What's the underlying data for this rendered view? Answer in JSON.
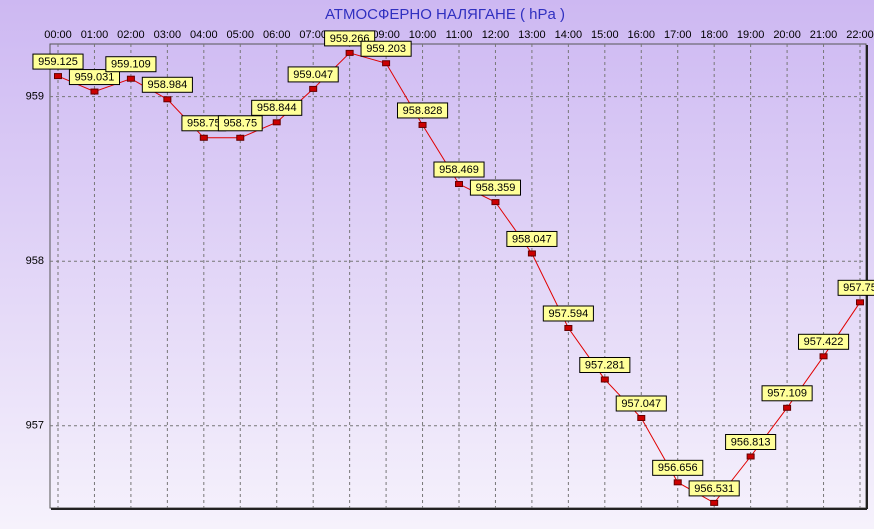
{
  "chart_data": {
    "type": "line",
    "title": "АТМОСФЕРНО НАЛЯГАНЕ  ( hPa )",
    "categories": [
      "00:00",
      "01:00",
      "02:00",
      "03:00",
      "04:00",
      "05:00",
      "06:00",
      "07:00",
      "08:00",
      "09:00",
      "10:00",
      "11:00",
      "12:00",
      "13:00",
      "14:00",
      "15:00",
      "16:00",
      "17:00",
      "18:00",
      "19:00",
      "20:00",
      "21:00",
      "22:00"
    ],
    "values": [
      959.125,
      959.031,
      959.109,
      958.984,
      958.75,
      958.75,
      958.844,
      959.047,
      959.266,
      959.203,
      958.828,
      958.469,
      958.359,
      958.047,
      957.594,
      957.281,
      957.047,
      956.656,
      956.531,
      956.813,
      957.109,
      957.422,
      957.75
    ],
    "color": "#e00000",
    "ylim": [
      956.5,
      959.32
    ],
    "yticks": [
      957,
      958,
      959
    ],
    "grid": true
  }
}
